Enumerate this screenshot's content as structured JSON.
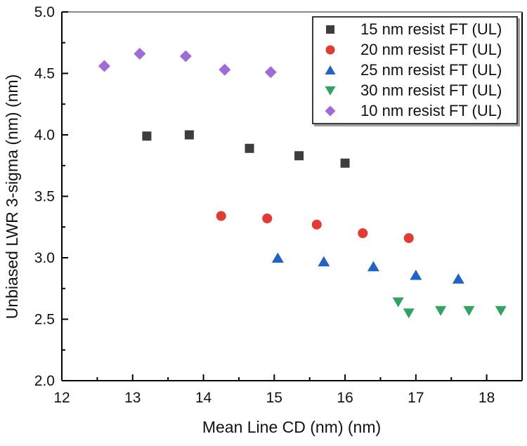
{
  "chart_data": {
    "type": "scatter",
    "title": "",
    "xlabel": "Mean Line CD (nm) (nm)",
    "ylabel": "Unbiased LWR 3-sigma (nm) (nm)",
    "xlim": [
      12,
      18.5
    ],
    "ylim": [
      2.0,
      5.0
    ],
    "x_major_ticks": [
      12,
      13,
      14,
      15,
      16,
      17,
      18
    ],
    "x_minor_step": 0.5,
    "y_major_ticks": [
      2.0,
      2.5,
      3.0,
      3.5,
      4.0,
      4.5,
      5.0
    ],
    "y_minor_step": 0.25,
    "grid": false,
    "legend_position": "top-right",
    "frame_top_color": "#8a8a8a",
    "axis_color": "#000000",
    "series": [
      {
        "name": "15 nm resist FT (UL)",
        "marker": "square",
        "color": "#3d3d3d",
        "points": [
          [
            13.2,
            3.99
          ],
          [
            13.8,
            4.0
          ],
          [
            14.65,
            3.89
          ],
          [
            15.35,
            3.83
          ],
          [
            16.0,
            3.77
          ]
        ]
      },
      {
        "name": "20 nm resist FT (UL)",
        "marker": "circle",
        "color": "#e23b32",
        "points": [
          [
            14.25,
            3.34
          ],
          [
            14.9,
            3.32
          ],
          [
            15.6,
            3.27
          ],
          [
            16.25,
            3.2
          ],
          [
            16.9,
            3.16
          ]
        ]
      },
      {
        "name": "25 nm resist FT (UL)",
        "marker": "triangle-up",
        "color": "#2063c6",
        "points": [
          [
            15.05,
            3.0
          ],
          [
            15.7,
            2.97
          ],
          [
            16.4,
            2.93
          ],
          [
            17.0,
            2.86
          ],
          [
            17.6,
            2.83
          ]
        ]
      },
      {
        "name": "30 nm resist FT (UL)",
        "marker": "triangle-down",
        "color": "#2fa35f",
        "points": [
          [
            16.75,
            2.64
          ],
          [
            16.9,
            2.55
          ],
          [
            17.35,
            2.57
          ],
          [
            17.75,
            2.57
          ],
          [
            18.2,
            2.57
          ]
        ]
      },
      {
        "name": "10 nm resist FT (UL)",
        "marker": "diamond",
        "color": "#a06bd8",
        "points": [
          [
            12.6,
            4.56
          ],
          [
            13.1,
            4.66
          ],
          [
            13.75,
            4.64
          ],
          [
            14.3,
            4.53
          ],
          [
            14.95,
            4.51
          ]
        ]
      }
    ]
  }
}
